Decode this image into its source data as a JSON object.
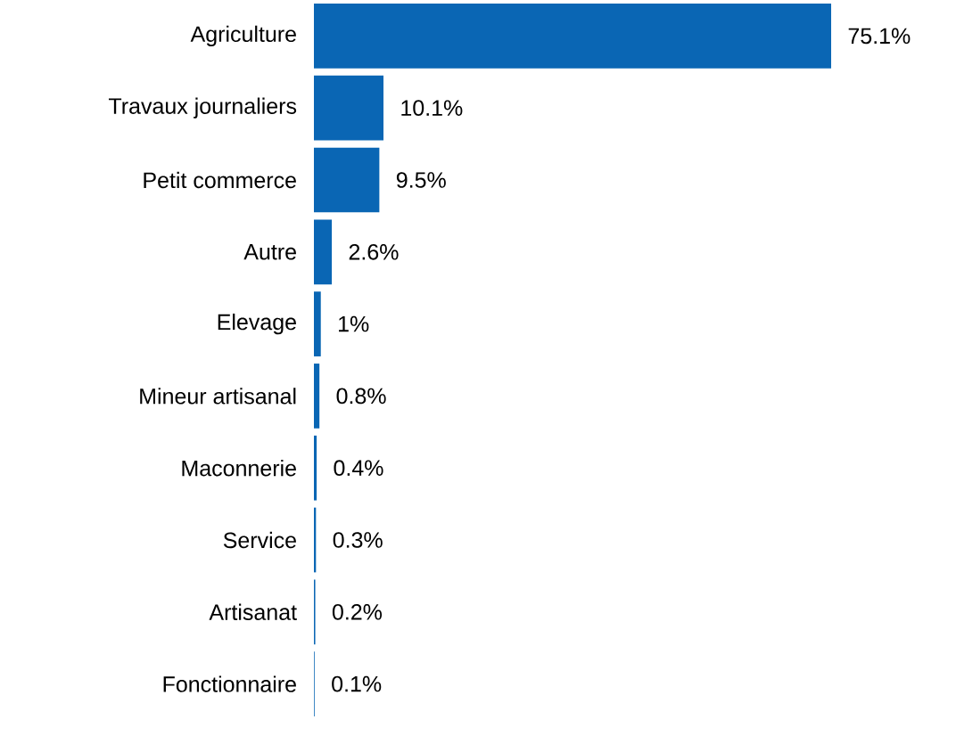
{
  "chart_data": {
    "type": "bar",
    "orientation": "horizontal",
    "categories": [
      "Agriculture",
      "Travaux journaliers",
      "Petit commerce",
      "Autre",
      "Elevage",
      "Mineur artisanal",
      "Maconnerie",
      "Service",
      "Artisanat",
      "Fonctionnaire"
    ],
    "values": [
      75.1,
      10.1,
      9.5,
      2.6,
      1,
      0.8,
      0.4,
      0.3,
      0.2,
      0.1
    ],
    "value_labels": [
      "75.1%",
      "10.1%",
      "9.5%",
      "2.6%",
      "1%",
      "0.8%",
      "0.4%",
      "0.3%",
      "0.2%",
      "0.1%"
    ],
    "color": "#0a66b4",
    "tick_labels": "y"
  }
}
